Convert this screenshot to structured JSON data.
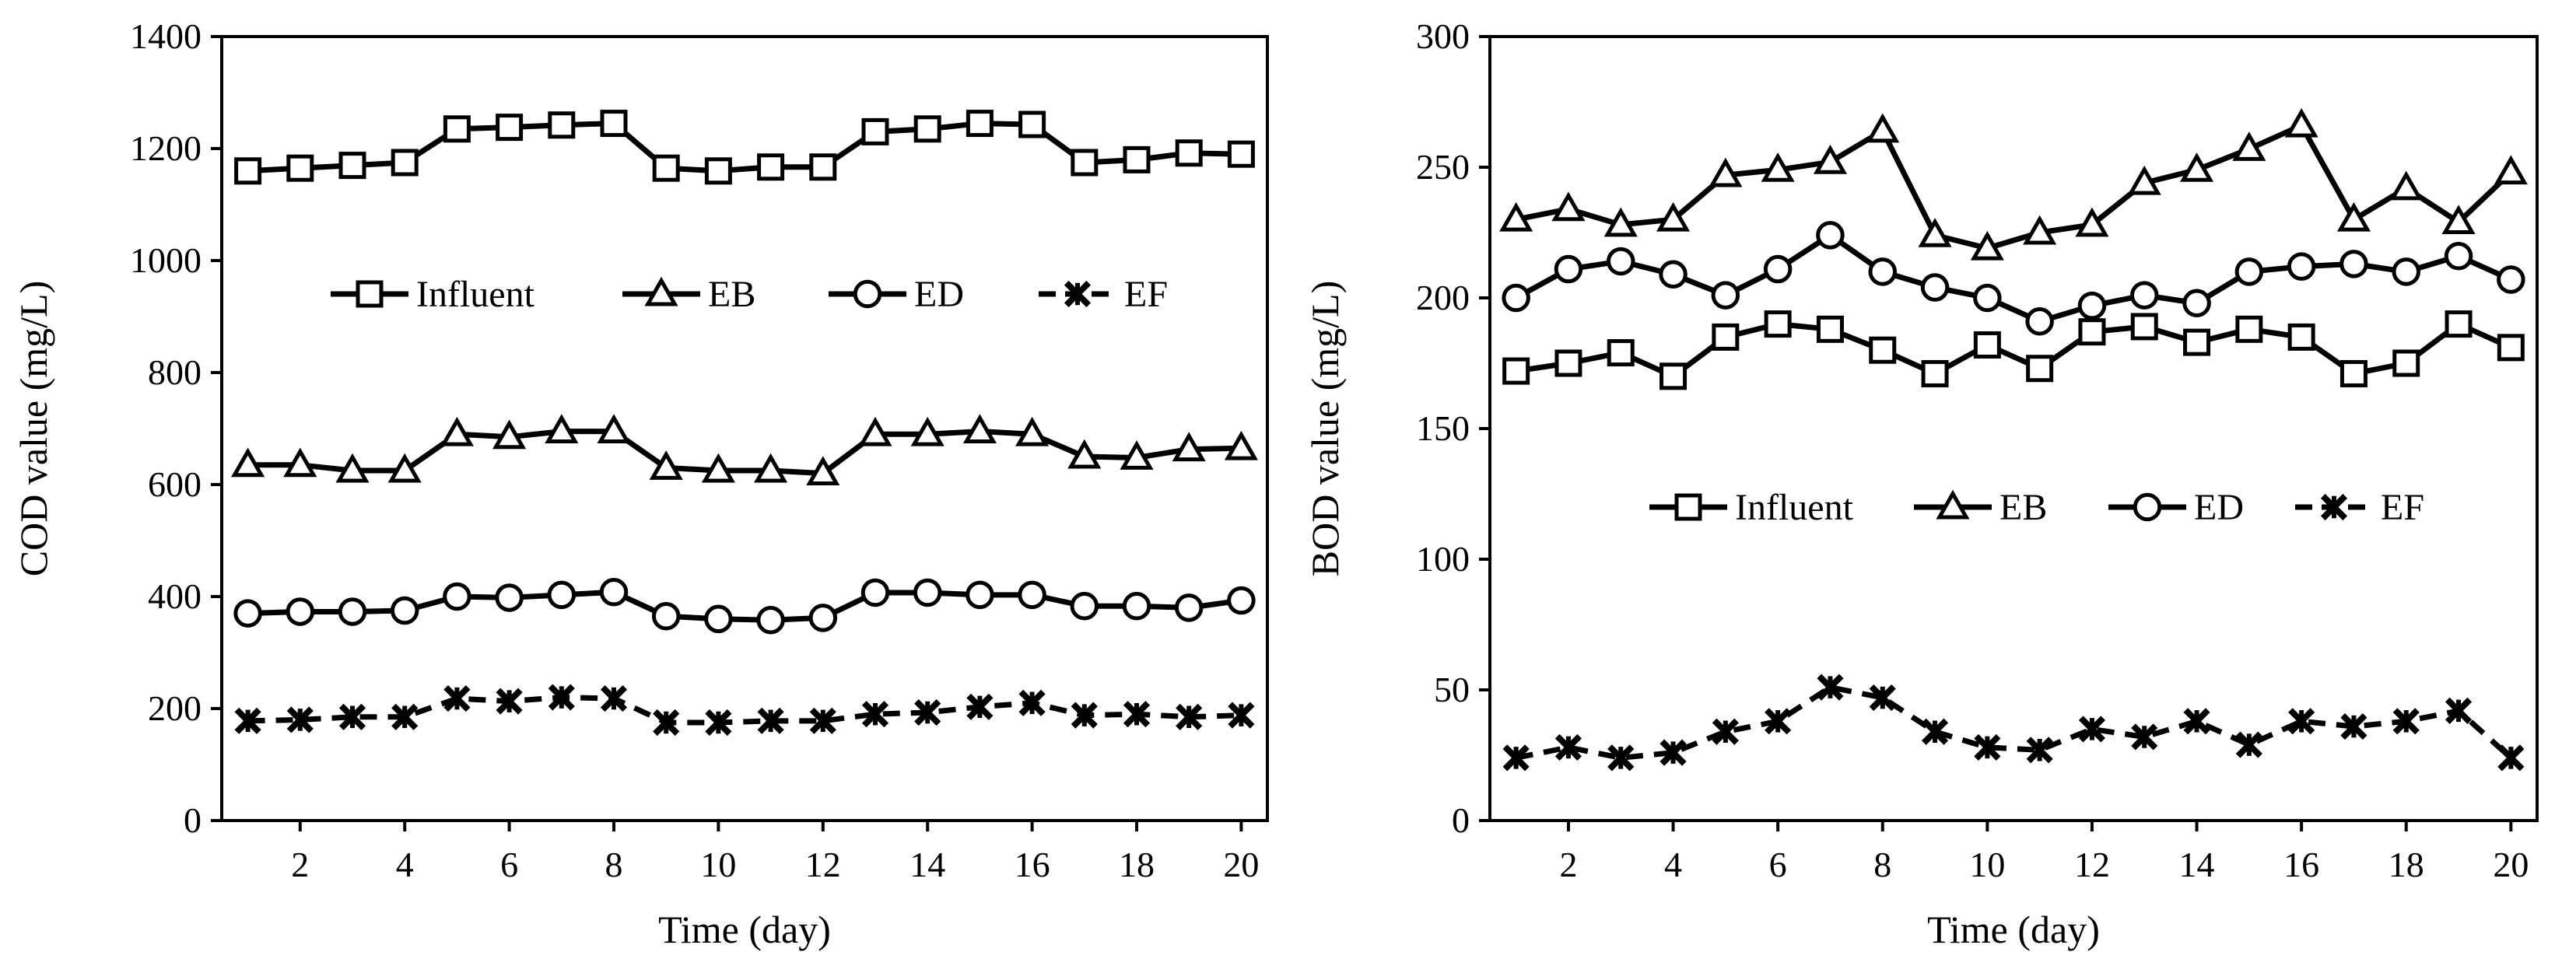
{
  "chart_data": [
    {
      "type": "line",
      "xlabel": "Time (day)",
      "ylabel": "COD value (mg/L)",
      "xlim": [
        0.5,
        20.5
      ],
      "ylim": [
        0,
        1400
      ],
      "xticks": [
        2,
        4,
        6,
        8,
        10,
        12,
        14,
        16,
        18,
        20
      ],
      "yticks": [
        0,
        200,
        400,
        600,
        800,
        1000,
        1200,
        1400
      ],
      "legend_position": "middle",
      "grid": false,
      "x": [
        1,
        2,
        3,
        4,
        5,
        6,
        7,
        8,
        9,
        10,
        11,
        12,
        13,
        14,
        15,
        16,
        17,
        18,
        19,
        20
      ],
      "series": [
        {
          "name": "Influent",
          "marker": "square",
          "line": "solid",
          "values": [
            1160,
            1165,
            1170,
            1175,
            1235,
            1238,
            1242,
            1245,
            1165,
            1160,
            1167,
            1167,
            1230,
            1235,
            1245,
            1243,
            1175,
            1180,
            1192,
            1190
          ]
        },
        {
          "name": "EB",
          "marker": "triangle",
          "line": "solid",
          "values": [
            635,
            635,
            625,
            625,
            690,
            685,
            695,
            695,
            630,
            625,
            625,
            620,
            690,
            690,
            695,
            690,
            650,
            648,
            663,
            665
          ]
        },
        {
          "name": "ED",
          "marker": "circle",
          "line": "solid",
          "values": [
            370,
            373,
            373,
            375,
            400,
            398,
            403,
            408,
            365,
            360,
            358,
            362,
            407,
            407,
            403,
            403,
            383,
            383,
            380,
            393
          ]
        },
        {
          "name": "EF",
          "marker": "cross",
          "line": "dashed",
          "values": [
            178,
            180,
            185,
            185,
            218,
            213,
            220,
            218,
            175,
            175,
            178,
            178,
            190,
            193,
            203,
            210,
            188,
            190,
            185,
            188
          ]
        }
      ]
    },
    {
      "type": "line",
      "xlabel": "Time (day)",
      "ylabel": "BOD value (mg/L)",
      "xlim": [
        0.5,
        20.5
      ],
      "ylim": [
        0,
        300
      ],
      "xticks": [
        2,
        4,
        6,
        8,
        10,
        12,
        14,
        16,
        18,
        20
      ],
      "yticks": [
        0,
        50,
        100,
        150,
        200,
        250,
        300
      ],
      "legend_position": "middle",
      "grid": false,
      "x": [
        1,
        2,
        3,
        4,
        5,
        6,
        7,
        8,
        9,
        10,
        11,
        12,
        13,
        14,
        15,
        16,
        17,
        18,
        19,
        20
      ],
      "series": [
        {
          "name": "Influent",
          "marker": "square",
          "line": "solid",
          "values": [
            172,
            175,
            179,
            170,
            185,
            190,
            188,
            180,
            171,
            182,
            173,
            187,
            189,
            183,
            188,
            185,
            171,
            175,
            190,
            181
          ]
        },
        {
          "name": "EB",
          "marker": "triangle",
          "line": "solid",
          "values": [
            230,
            234,
            228,
            230,
            247,
            249,
            252,
            264,
            224,
            219,
            225,
            228,
            244,
            249,
            257,
            266,
            230,
            242,
            229,
            248
          ]
        },
        {
          "name": "ED",
          "marker": "circle",
          "line": "solid",
          "values": [
            200,
            211,
            214,
            209,
            201,
            211,
            224,
            210,
            204,
            200,
            191,
            197,
            201,
            198,
            210,
            212,
            213,
            210,
            216,
            207
          ]
        },
        {
          "name": "EF",
          "marker": "cross",
          "line": "dashed",
          "values": [
            24,
            28,
            24,
            26,
            34,
            38,
            51,
            47,
            34,
            28,
            27,
            35,
            32,
            38,
            29,
            38,
            36,
            38,
            42,
            24
          ]
        }
      ]
    }
  ]
}
